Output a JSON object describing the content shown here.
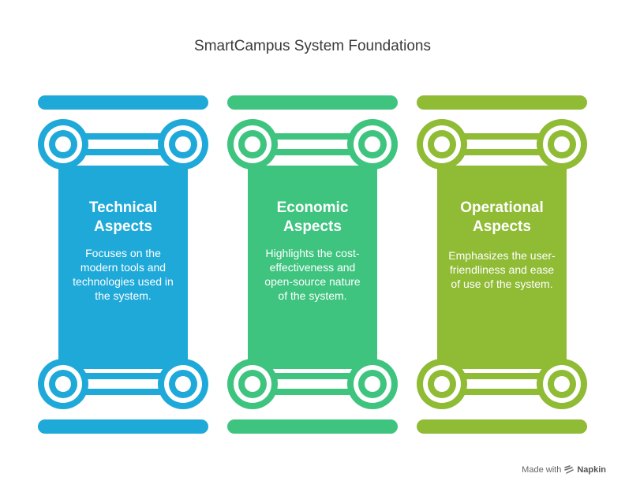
{
  "title": "SmartCampus System Foundations",
  "pillars": [
    {
      "title": "Technical\nAspects",
      "description": "Focuses on the\nmodern tools and\ntechnologies used in\nthe system.",
      "color": "#1fa9d9"
    },
    {
      "title": "Economic\nAspects",
      "description": "Highlights the cost-\neffectiveness and\nopen-source nature\nof the system.",
      "color": "#3ec47f"
    },
    {
      "title": "Operational\nAspects",
      "description": "Emphasizes the user-\nfriendliness and ease\nof use of the system.",
      "color": "#8fbb35"
    }
  ],
  "footer": {
    "made_with": "Made with",
    "brand": "Napkin",
    "logo_icon": "napkin-logo-icon"
  }
}
